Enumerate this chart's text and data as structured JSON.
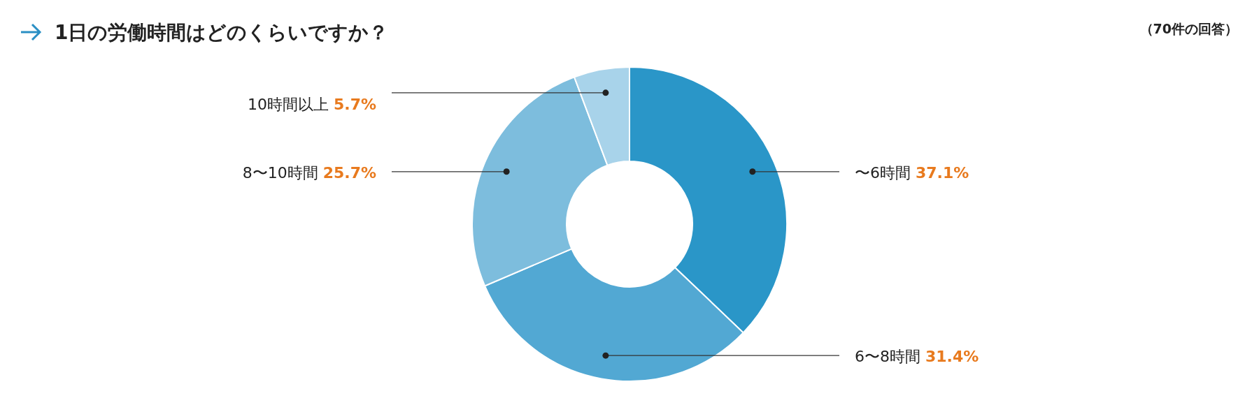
{
  "chart_data": {
    "type": "donut",
    "title": "1日の労働時間はどのくらいですか？",
    "annotations": [
      "（70件の回答）"
    ],
    "categories": [
      "〜6時間",
      "6〜8時間",
      "8〜10時間",
      "10時間以上"
    ],
    "values": [
      37.1,
      31.4,
      25.7,
      5.7
    ],
    "value_labels": [
      "37.1%",
      "31.4%",
      "25.7%",
      "5.7%"
    ],
    "colors": [
      "#2a96c8",
      "#52a8d3",
      "#7dbddd",
      "#a8d3ea"
    ]
  }
}
